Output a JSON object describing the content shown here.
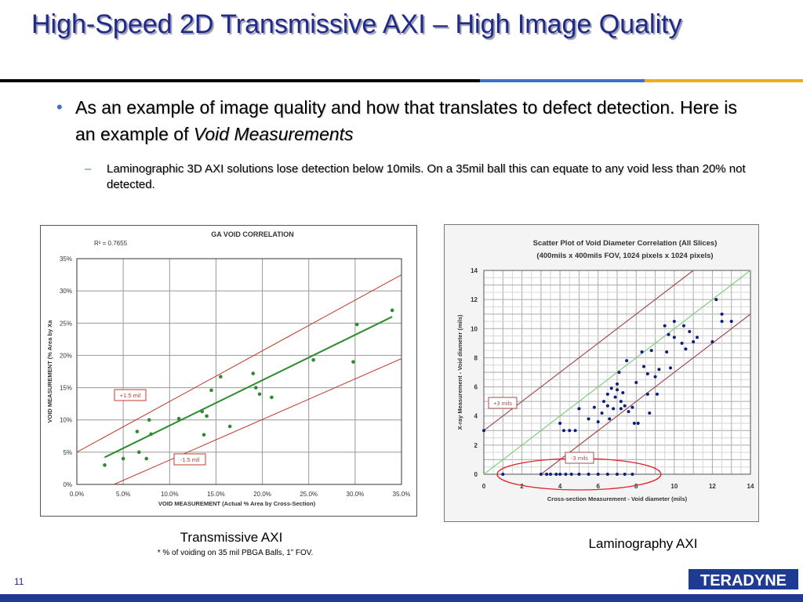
{
  "slide": {
    "title": "High-Speed 2D Transmissive AXI – High Image Quality",
    "bullet_text_a": "As an example of image quality and how that translates to defect detection.  Here is an example of ",
    "bullet_text_em": "Void Measurements",
    "sub_bullet": "Laminographic 3D AXI solutions lose detection below 10mils. On a 35mil ball this can equate to any void less than 20% not detected.",
    "caption_left": "Transmissive AXI",
    "caption_left_note": "* % of voiding on 35 mil PBGA Balls, 1” FOV.",
    "caption_right": "Laminography AXI",
    "page_number": "11",
    "logo_text": "TERADYNE"
  },
  "colors": {
    "title": "#1f2a8a",
    "accent_blue": "#3d6fcf",
    "accent_gold": "#f2a91a",
    "fit_green": "#2e8b2e",
    "band_red": "#c0392b"
  },
  "chart_data": [
    {
      "type": "scatter",
      "title": "GA VOID CORRELATION",
      "annotation": "R² = 0.7655",
      "xlabel": "VOID MEASUREMENT (Actual % Area by Cross-Section)",
      "ylabel": "VOID MEASUREMENT (% Area by Xa",
      "xlim": [
        0,
        35
      ],
      "ylim": [
        0,
        35
      ],
      "xticks": [
        "0.0%",
        "5.0%",
        "10.0%",
        "15.0%",
        "20.0%",
        "25.0%",
        "30.0%",
        "35.0%"
      ],
      "yticks": [
        "0%",
        "5%",
        "10%",
        "15%",
        "20%",
        "25%",
        "30%",
        "35%"
      ],
      "band_labels": [
        "+1.5 mil",
        "-1.5 mil"
      ],
      "points": [
        [
          3,
          3
        ],
        [
          5,
          4
        ],
        [
          6.5,
          8.2
        ],
        [
          6.7,
          5
        ],
        [
          7.5,
          4
        ],
        [
          7.8,
          10
        ],
        [
          8,
          7.8
        ],
        [
          11,
          10.2
        ],
        [
          13.5,
          11.3
        ],
        [
          13.7,
          7.7
        ],
        [
          14,
          10.6
        ],
        [
          14.5,
          14.6
        ],
        [
          15.5,
          16.7
        ],
        [
          16.5,
          9
        ],
        [
          19,
          17.2
        ],
        [
          19.3,
          15
        ],
        [
          19.7,
          14
        ],
        [
          21,
          13.5
        ],
        [
          25.5,
          19.3
        ],
        [
          29.8,
          19
        ],
        [
          30.2,
          24.8
        ],
        [
          34,
          27
        ]
      ],
      "trend": [
        [
          3,
          4.2
        ],
        [
          34,
          26
        ]
      ]
    },
    {
      "type": "scatter",
      "title": "Scatter Plot of Void Diameter Correlation (All Slices)",
      "subtitle": "(400mils x 400mils FOV, 1024 pixels x 1024 pixels)",
      "xlabel": "Cross-section Measurement - Void diameter (mils)",
      "ylabel": "X-ray Measurement - Void diameter (mils)",
      "xlim": [
        0,
        14
      ],
      "ylim": [
        0,
        14
      ],
      "xticks": [
        "0",
        "2",
        "4",
        "6",
        "8",
        "10",
        "12",
        "14"
      ],
      "yticks": [
        "0",
        "2",
        "4",
        "6",
        "8",
        "10",
        "12",
        "14"
      ],
      "band_labels": [
        "+3 mils",
        "-3 mils"
      ],
      "points": [
        [
          0,
          3
        ],
        [
          4,
          3.5
        ],
        [
          4.2,
          3
        ],
        [
          4.5,
          3
        ],
        [
          4.8,
          3
        ],
        [
          5,
          4.5
        ],
        [
          5.5,
          3.8
        ],
        [
          5.8,
          4.6
        ],
        [
          6,
          3.6
        ],
        [
          6.2,
          4.2
        ],
        [
          6.3,
          5
        ],
        [
          6.5,
          5.5
        ],
        [
          6.5,
          4.7
        ],
        [
          6.6,
          3.8
        ],
        [
          6.7,
          5.9
        ],
        [
          6.8,
          4.5
        ],
        [
          6.9,
          5.3
        ],
        [
          7,
          6.2
        ],
        [
          7,
          5.8
        ],
        [
          7.1,
          7
        ],
        [
          7.2,
          4.5
        ],
        [
          7.2,
          5
        ],
        [
          7.3,
          5.6
        ],
        [
          7.4,
          4.7
        ],
        [
          7.5,
          7.8
        ],
        [
          7.6,
          4.3
        ],
        [
          7.8,
          4.6
        ],
        [
          7.9,
          3.5
        ],
        [
          8,
          6.3
        ],
        [
          8.1,
          3.5
        ],
        [
          8.3,
          8.4
        ],
        [
          8.4,
          7.4
        ],
        [
          8.6,
          5.5
        ],
        [
          8.6,
          6.9
        ],
        [
          8.7,
          4.2
        ],
        [
          8.8,
          8.5
        ],
        [
          9,
          6.7
        ],
        [
          9.1,
          5.5
        ],
        [
          9.2,
          7.2
        ],
        [
          9.5,
          10.2
        ],
        [
          9.6,
          8.4
        ],
        [
          9.7,
          9.6
        ],
        [
          9.8,
          7.3
        ],
        [
          10,
          9.4
        ],
        [
          10,
          10.5
        ],
        [
          10.4,
          9
        ],
        [
          10.5,
          10.2
        ],
        [
          10.6,
          8.6
        ],
        [
          10.8,
          9.8
        ],
        [
          11,
          9.1
        ],
        [
          11.2,
          9.4
        ],
        [
          12,
          9.1
        ],
        [
          12.2,
          12
        ],
        [
          12.5,
          10.5
        ],
        [
          12.5,
          11
        ],
        [
          13,
          10.5
        ],
        [
          1,
          0
        ],
        [
          3,
          0
        ],
        [
          3.3,
          0
        ],
        [
          3.5,
          0
        ],
        [
          3.8,
          0
        ],
        [
          4,
          0
        ],
        [
          4.3,
          0
        ],
        [
          4.6,
          0
        ],
        [
          5,
          0
        ],
        [
          5.5,
          0
        ],
        [
          6,
          0
        ],
        [
          6.5,
          0
        ],
        [
          7,
          0
        ],
        [
          7.4,
          0
        ],
        [
          7.8,
          0
        ]
      ]
    }
  ]
}
